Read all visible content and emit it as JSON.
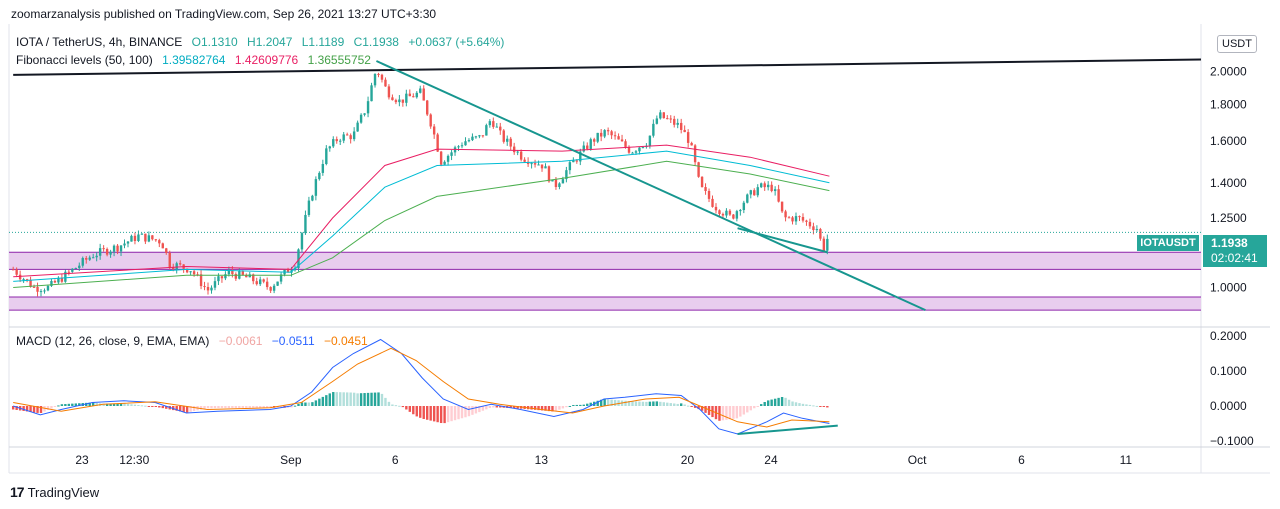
{
  "header": {
    "attribution": "zoomarzanalysis published on TradingView.com, Sep 26, 2021 13:27 UTC+3:30"
  },
  "legend": {
    "symbol": "IOTA / TetherUS, 4h, BINANCE",
    "open": "O1.1310",
    "high": "H1.2047",
    "low": "L1.1189",
    "close": "C1.1938",
    "change": "+0.0637 (+5.64%)",
    "fib_label": "Fibonacci levels (50, 100)",
    "fib_values": [
      "1.39582764",
      "1.42609776",
      "1.36555752"
    ],
    "macd_label": "MACD (12, 26, close, 9, EMA, EMA)",
    "macd_values": [
      "−0.0061",
      "−0.0511",
      "−0.0451"
    ]
  },
  "badges": {
    "currency": "USDT",
    "symbol_tag": "IOTAUSDT",
    "last_price": "1.1938",
    "countdown": "02:02:41"
  },
  "footer": {
    "logo_text": "TradingView"
  },
  "colors": {
    "up": "#26a69a",
    "down": "#ef5350",
    "ma_red": "#e91e63",
    "ma_blue": "#00bcd4",
    "ma_green": "#4caf50",
    "trend_black": "#131722",
    "trend_teal": "#17968f",
    "zone_fill": "#e8cdee",
    "zone_line": "#8e24aa",
    "macd_line": "#2962ff",
    "signal_line": "#f57c00"
  },
  "chart_data": [
    {
      "type": "candlestick",
      "title": "IOTA / TetherUS, 4h, BINANCE",
      "y_scale": "log",
      "ylim": [
        0.93,
        2.15
      ],
      "y_ticks": [
        "2.0000",
        "1.8000",
        "1.6000",
        "1.4000",
        "1.2500",
        "1.1000",
        "1.0000"
      ],
      "y_tick_values": [
        2.0,
        1.8,
        1.6,
        1.4,
        1.25,
        1.1,
        1.0
      ],
      "x_ticks": [
        "23",
        "12:30",
        "Sep",
        "6",
        "13",
        "20",
        "24",
        "Oct",
        "6",
        "11"
      ],
      "x_tick_days": [
        -9,
        -6.5,
        1,
        6,
        13,
        20,
        24,
        31,
        36,
        41
      ],
      "x_range_days": [
        -12.5,
        44.6
      ],
      "closes_key_points": [
        [
          -12.3,
          1.06
        ],
        [
          -11.3,
          1.0
        ],
        [
          -10.6,
          1.0
        ],
        [
          -9.6,
          1.05
        ],
        [
          -8.5,
          1.11
        ],
        [
          -7.3,
          1.14
        ],
        [
          -6.3,
          1.18
        ],
        [
          -5.2,
          1.16
        ],
        [
          -4.8,
          1.08
        ],
        [
          -3.8,
          1.06
        ],
        [
          -3.0,
          0.99
        ],
        [
          -2.0,
          1.05
        ],
        [
          -1.0,
          1.03
        ],
        [
          0.0,
          1.0
        ],
        [
          0.6,
          1.04
        ],
        [
          1.2,
          1.08
        ],
        [
          1.5,
          1.18
        ],
        [
          2.0,
          1.35
        ],
        [
          2.7,
          1.55
        ],
        [
          3.3,
          1.62
        ],
        [
          4.0,
          1.63
        ],
        [
          4.6,
          1.78
        ],
        [
          5.1,
          2.02
        ],
        [
          5.6,
          1.88
        ],
        [
          6.2,
          1.82
        ],
        [
          7.2,
          1.87
        ],
        [
          7.7,
          1.7
        ],
        [
          8.2,
          1.5
        ],
        [
          9.3,
          1.6
        ],
        [
          10.1,
          1.62
        ],
        [
          10.6,
          1.72
        ],
        [
          11.1,
          1.62
        ],
        [
          12.1,
          1.52
        ],
        [
          13.1,
          1.48
        ],
        [
          13.6,
          1.38
        ],
        [
          14.4,
          1.48
        ],
        [
          15.4,
          1.6
        ],
        [
          16.1,
          1.65
        ],
        [
          17.3,
          1.55
        ],
        [
          18.1,
          1.6
        ],
        [
          18.6,
          1.74
        ],
        [
          19.6,
          1.68
        ],
        [
          20.1,
          1.6
        ],
        [
          20.6,
          1.38
        ],
        [
          21.3,
          1.3
        ],
        [
          22.1,
          1.25
        ],
        [
          22.6,
          1.31
        ],
        [
          23.4,
          1.38
        ],
        [
          24.1,
          1.38
        ],
        [
          24.6,
          1.25
        ],
        [
          25.3,
          1.25
        ],
        [
          26.2,
          1.21
        ],
        [
          26.5,
          1.13
        ],
        [
          26.8,
          1.19
        ]
      ],
      "moving_averages": [
        {
          "name": "1.42609776",
          "points": [
            [
              -12.3,
              1.035
            ],
            [
              -4.0,
              1.07
            ],
            [
              1.0,
              1.06
            ],
            [
              3.0,
              1.25
            ],
            [
              5.5,
              1.48
            ],
            [
              8.0,
              1.56
            ],
            [
              14.0,
              1.55
            ],
            [
              19.0,
              1.58
            ],
            [
              23.0,
              1.52
            ],
            [
              26.8,
              1.43
            ]
          ]
        },
        {
          "name": "1.39582764",
          "points": [
            [
              -12.3,
              1.02
            ],
            [
              -4.0,
              1.06
            ],
            [
              1.0,
              1.05
            ],
            [
              3.0,
              1.18
            ],
            [
              5.5,
              1.38
            ],
            [
              8.0,
              1.48
            ],
            [
              14.0,
              1.5
            ],
            [
              19.0,
              1.55
            ],
            [
              23.0,
              1.48
            ],
            [
              26.8,
              1.4
            ]
          ]
        },
        {
          "name": "1.36555752",
          "points": [
            [
              -12.3,
              1.0
            ],
            [
              -4.0,
              1.04
            ],
            [
              1.0,
              1.04
            ],
            [
              3.0,
              1.1
            ],
            [
              5.5,
              1.24
            ],
            [
              8.0,
              1.34
            ],
            [
              14.0,
              1.42
            ],
            [
              19.0,
              1.5
            ],
            [
              23.0,
              1.44
            ],
            [
              26.8,
              1.365
            ]
          ]
        }
      ],
      "last_price": 1.1938,
      "zones": [
        [
          1.06,
          1.12
        ],
        [
          0.93,
          0.97
        ]
      ],
      "trendlines": [
        {
          "from": [
            -12.3,
            1.98
          ],
          "to": [
            44.6,
            2.08
          ]
        },
        {
          "from": [
            5.1,
            2.07
          ],
          "to": [
            31.4,
            0.93
          ]
        },
        {
          "from": [
            22.4,
            1.21
          ],
          "to": [
            26.7,
            1.12
          ]
        }
      ]
    },
    {
      "type": "line",
      "title": "MACD (12, 26, close, 9, EMA, EMA)",
      "ylim": [
        -0.11,
        0.215
      ],
      "y_ticks": [
        "0.2000",
        "0.1000",
        "0.0000",
        "−0.1000"
      ],
      "y_tick_values": [
        0.2,
        0.1,
        0.0,
        -0.1
      ],
      "series": [
        {
          "name": "−0.0511",
          "points": [
            [
              -12.3,
              0.0
            ],
            [
              -11.0,
              -0.025
            ],
            [
              -10.0,
              -0.01
            ],
            [
              -8.5,
              0.01
            ],
            [
              -7.0,
              0.015
            ],
            [
              -5.5,
              0.01
            ],
            [
              -4.0,
              -0.02
            ],
            [
              -2.5,
              -0.015
            ],
            [
              0.0,
              -0.01
            ],
            [
              1.0,
              0.0
            ],
            [
              2.0,
              0.04
            ],
            [
              3.0,
              0.11
            ],
            [
              4.0,
              0.15
            ],
            [
              5.3,
              0.19
            ],
            [
              6.3,
              0.15
            ],
            [
              7.3,
              0.08
            ],
            [
              8.3,
              0.02
            ],
            [
              9.5,
              -0.01
            ],
            [
              10.6,
              0.005
            ],
            [
              12.0,
              -0.01
            ],
            [
              13.6,
              -0.03
            ],
            [
              15.0,
              -0.01
            ],
            [
              16.0,
              0.02
            ],
            [
              17.0,
              0.025
            ],
            [
              18.5,
              0.035
            ],
            [
              19.7,
              0.03
            ],
            [
              20.6,
              -0.01
            ],
            [
              21.5,
              -0.065
            ],
            [
              22.4,
              -0.08
            ],
            [
              23.8,
              -0.045
            ],
            [
              24.6,
              -0.02
            ],
            [
              25.5,
              -0.035
            ],
            [
              26.8,
              -0.05
            ]
          ]
        },
        {
          "name": "−0.0451",
          "points": [
            [
              -12.3,
              0.01
            ],
            [
              -10.0,
              -0.015
            ],
            [
              -8.0,
              0.005
            ],
            [
              -5.5,
              0.012
            ],
            [
              -3.0,
              -0.01
            ],
            [
              0.0,
              -0.005
            ],
            [
              1.5,
              0.01
            ],
            [
              3.0,
              0.07
            ],
            [
              4.2,
              0.12
            ],
            [
              5.8,
              0.165
            ],
            [
              7.0,
              0.13
            ],
            [
              8.3,
              0.07
            ],
            [
              9.5,
              0.02
            ],
            [
              11.0,
              0.005
            ],
            [
              13.0,
              -0.01
            ],
            [
              14.5,
              -0.02
            ],
            [
              16.0,
              0.0
            ],
            [
              18.0,
              0.02
            ],
            [
              19.6,
              0.025
            ],
            [
              21.0,
              -0.01
            ],
            [
              22.4,
              -0.045
            ],
            [
              23.8,
              -0.06
            ],
            [
              25.0,
              -0.04
            ],
            [
              26.8,
              -0.045
            ]
          ]
        }
      ],
      "divergence_line": {
        "from": [
          22.4,
          -0.08
        ],
        "to": [
          27.2,
          -0.056
        ]
      }
    }
  ]
}
